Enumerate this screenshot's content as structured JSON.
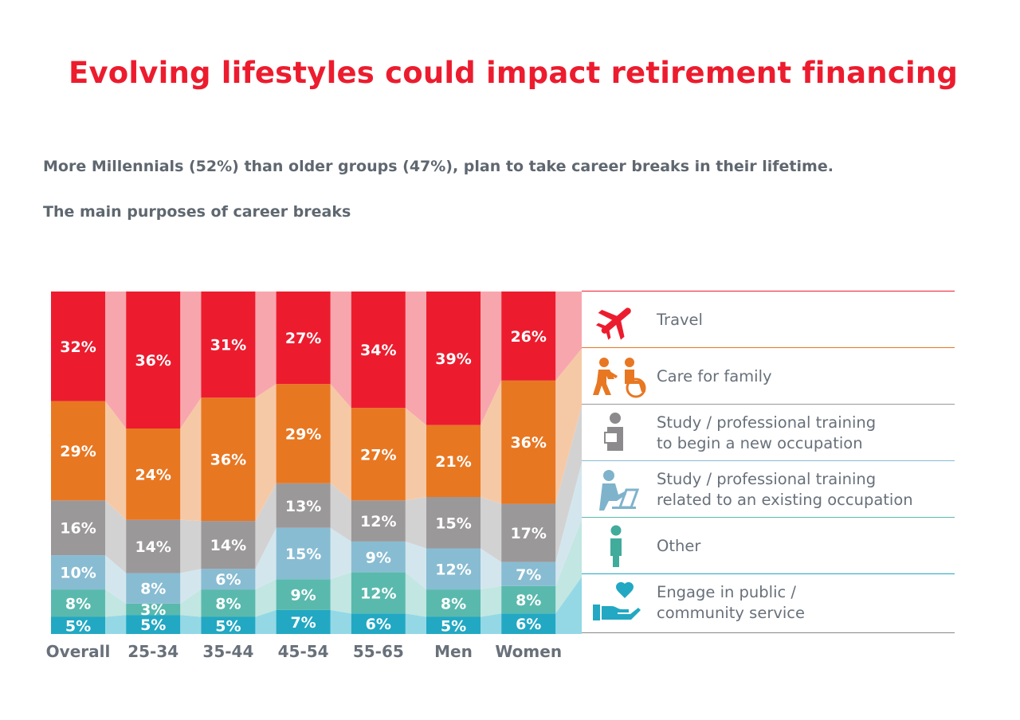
{
  "title": "Evolving lifestyles could impact retirement financing",
  "subtitle": "More Millennials (52%) than older groups (47%), plan to take career breaks in their lifetime.",
  "section_title": "The main purposes of career breaks",
  "chart_data": {
    "type": "bar",
    "stacked": true,
    "normalized": true,
    "categories": [
      "Overall",
      "25-34",
      "35-44",
      "45-54",
      "55-65",
      "Men",
      "Women"
    ],
    "series": [
      {
        "name": "Engage in public / community service",
        "color": "#22a8c3",
        "connector_color": "#94d8e6",
        "values": [
          5,
          5,
          5,
          7,
          6,
          5,
          6
        ]
      },
      {
        "name": "Other",
        "color": "#5ab9ad",
        "connector_color": "#c2e6e1",
        "values": [
          8,
          3,
          8,
          9,
          12,
          8,
          8
        ]
      },
      {
        "name": "Study / professional training related to an existing occupation",
        "color": "#88bcd2",
        "connector_color": "#d3e6ee",
        "values": [
          10,
          8,
          6,
          15,
          9,
          12,
          7
        ]
      },
      {
        "name": "Study / professional training to begin a new occupation",
        "color": "#9b989a",
        "connector_color": "#d3d2d3",
        "values": [
          16,
          14,
          14,
          13,
          12,
          15,
          17
        ]
      },
      {
        "name": "Care for family",
        "color": "#e87722",
        "connector_color": "#f6c9a6",
        "values": [
          29,
          24,
          36,
          29,
          27,
          21,
          36
        ]
      },
      {
        "name": "Travel",
        "color": "#ec1c2e",
        "connector_color": "#f8a6ad",
        "values": [
          32,
          36,
          31,
          27,
          34,
          39,
          26
        ]
      }
    ],
    "legend": [
      {
        "label": "Travel",
        "icon": "airplane-icon",
        "border_color": "#ec1c2e"
      },
      {
        "label": "Care for family",
        "icon": "caregiver-wheelchair-icon",
        "border_color": "#e87722"
      },
      {
        "label": "Study / professional training\nto begin a new occupation",
        "icon": "person-reading-icon",
        "border_color": "#9b989a"
      },
      {
        "label": "Study / professional training\nrelated to an existing occupation",
        "icon": "person-laptop-icon",
        "border_color": "#88bcd2"
      },
      {
        "label": "Other",
        "icon": "person-icon",
        "border_color": "#5ab9ad"
      },
      {
        "label": "Engage in public /\ncommunity service",
        "icon": "hand-heart-icon",
        "border_color": "#22a8c3"
      }
    ],
    "legend_placement": "right",
    "grid": false
  }
}
